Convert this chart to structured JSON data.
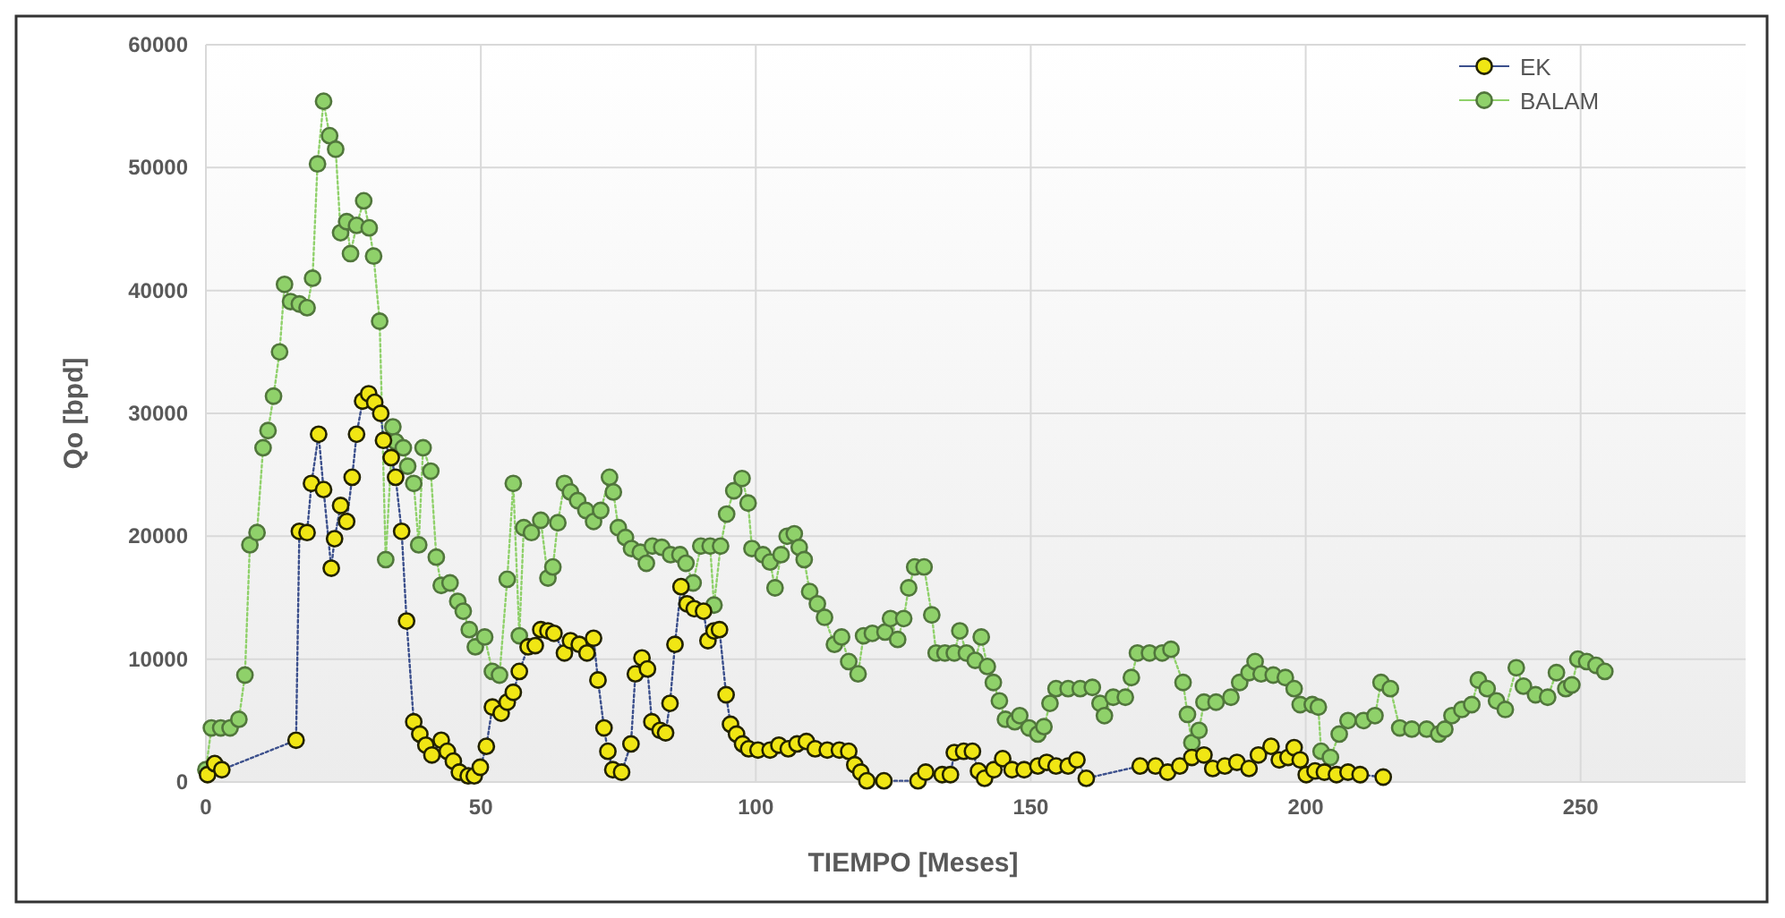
{
  "chart_data": {
    "type": "line",
    "xlabel": "TIEMPO [Meses]",
    "ylabel": "Qo [bpd]",
    "xlim": [
      0,
      280
    ],
    "xticks": [
      0,
      50,
      100,
      150,
      200,
      250
    ],
    "ylim": [
      0,
      60000
    ],
    "yticks": [
      0,
      10000,
      20000,
      30000,
      40000,
      50000,
      60000
    ],
    "grid": true,
    "legend": "top right",
    "marker": "circle",
    "line_style": "dotted",
    "series": [
      {
        "name": "EK",
        "color": "#f0e614",
        "x": [
          0.3,
          1.6,
          2.9,
          16.4,
          17,
          18.4,
          19.2,
          20.5,
          21.4,
          22.8,
          23.4,
          24.5,
          25.6,
          26.6,
          27.4,
          28.5,
          29.6,
          30.7,
          31.8,
          32.3,
          33.7,
          34.5,
          35.6,
          36.5,
          37.8,
          38.9,
          40,
          41.1,
          42.8,
          43.9,
          45,
          46.1,
          47.7,
          48.8,
          49.9,
          51,
          52.1,
          53.7,
          54.8,
          55.9,
          57,
          58.6,
          59.9,
          60.9,
          62.2,
          63.3,
          65.2,
          66.3,
          67.9,
          69.3,
          70.5,
          71.3,
          72.4,
          73.1,
          74,
          75.6,
          77.3,
          78.1,
          79.3,
          80.3,
          81.1,
          82.6,
          83.6,
          84.4,
          85.3,
          86.4,
          87.5,
          88.8,
          90.5,
          91.3,
          92.4,
          93.4,
          94.6,
          95.4,
          96.5,
          97.6,
          98.7,
          100.4,
          102.6,
          104.2,
          105.9,
          107.5,
          109.2,
          110.8,
          113,
          115.2,
          116.9,
          118,
          119.1,
          120.2,
          123.3,
          129.5,
          130.9,
          133.9,
          135.4,
          136.1,
          137.8,
          139.4,
          140.5,
          141.6,
          143.3,
          144.9,
          146.6,
          148.8,
          151.3,
          152.9,
          154.6,
          156.8,
          158.4,
          160.1,
          169.9,
          172.7,
          174.9,
          177.1,
          179.3,
          181.5,
          183.1,
          185.3,
          187.5,
          189.7,
          191.4,
          193.7,
          195.2,
          196.8,
          197.9,
          199,
          200.1,
          201.7,
          203.4,
          205.6,
          207.7,
          209.9,
          214.1
        ],
        "values": [
          600,
          1500,
          1000,
          3400,
          20400,
          20300,
          24300,
          28300,
          23800,
          17400,
          19800,
          22500,
          21200,
          24800,
          28300,
          31000,
          31600,
          30900,
          30000,
          27800,
          26400,
          24800,
          20400,
          13100,
          4900,
          3900,
          3000,
          2200,
          3400,
          2500,
          1700,
          800,
          500,
          500,
          1200,
          2900,
          6100,
          5600,
          6500,
          7300,
          9000,
          11000,
          11100,
          12400,
          12300,
          12100,
          10500,
          11500,
          11200,
          10500,
          11700,
          8300,
          4400,
          2500,
          1000,
          800,
          3100,
          8800,
          10100,
          9200,
          4900,
          4200,
          4000,
          6400,
          11200,
          15900,
          14500,
          14100,
          13900,
          11500,
          12300,
          12400,
          7100,
          4700,
          3900,
          3100,
          2700,
          2600,
          2600,
          3000,
          2700,
          3100,
          3300,
          2700,
          2600,
          2600,
          2500,
          1400,
          800,
          100,
          100,
          100,
          800,
          600,
          600,
          2400,
          2500,
          2500,
          900,
          300,
          1000,
          1900,
          1000,
          1000,
          1300,
          1600,
          1300,
          1300,
          1800,
          300,
          1300,
          1300,
          800,
          1300,
          2000,
          2200,
          1100,
          1300,
          1600,
          1100,
          2200,
          2900,
          1800,
          2000,
          2800,
          1800,
          600,
          900,
          800,
          600,
          800,
          600,
          400
        ]
      },
      {
        "name": "BALAM",
        "color": "#8fd16a",
        "x": [
          0,
          1,
          2.7,
          4.4,
          6,
          7.1,
          8,
          9.3,
          10.4,
          11.3,
          12.3,
          13.4,
          14.3,
          15.4,
          17,
          18.4,
          19.4,
          20.3,
          21.4,
          22.5,
          23.6,
          24.5,
          25.6,
          26.3,
          27.4,
          28.7,
          29.7,
          30.5,
          31.6,
          32.7,
          34,
          34.5,
          35.9,
          36.7,
          37.8,
          38.7,
          39.5,
          40.9,
          41.9,
          42.8,
          44.4,
          45.8,
          46.8,
          47.9,
          49,
          50.7,
          52.1,
          53.4,
          54.8,
          55.9,
          57,
          57.8,
          59.2,
          60.9,
          62.2,
          63.1,
          64,
          65.2,
          66.3,
          67.6,
          69.1,
          70.5,
          71.8,
          73.4,
          74.1,
          75,
          76.3,
          77.4,
          79,
          80.1,
          81.2,
          82.9,
          84.5,
          86.2,
          87.3,
          88.6,
          90,
          91.7,
          92.4,
          93.6,
          94.7,
          96,
          97.5,
          98.6,
          99.3,
          101.3,
          102.6,
          103.5,
          104.6,
          105.7,
          107,
          107.9,
          108.8,
          109.8,
          111.2,
          112.5,
          114.3,
          115.6,
          116.9,
          118.6,
          119.6,
          121.2,
          123.5,
          124.5,
          125.8,
          126.9,
          127.8,
          128.9,
          130.6,
          132,
          132.8,
          134.4,
          136.1,
          137.1,
          138.3,
          139.9,
          141,
          142.1,
          143.2,
          144.3,
          145.4,
          147.1,
          148,
          149.7,
          151.3,
          152.4,
          153.5,
          154.6,
          156.8,
          159,
          161.2,
          162.6,
          163.4,
          165,
          167.2,
          168.3,
          169.4,
          171.6,
          173.9,
          175.5,
          177.7,
          178.5,
          179.3,
          180.6,
          181.5,
          183.7,
          186.4,
          188,
          189.7,
          190.8,
          191.9,
          194.1,
          196.3,
          197.9,
          199,
          201.2,
          202.3,
          202.8,
          204.5,
          206.1,
          207.7,
          210.5,
          212.6,
          213.7,
          215.4,
          217.1,
          219.3,
          222,
          224.2,
          225.3,
          226.6,
          228.4,
          230.2,
          231.4,
          233,
          234.7,
          236.3,
          238.3,
          239.6,
          241.8,
          244,
          245.6,
          247.3,
          248.4,
          249.5,
          251.1,
          252.8,
          254.4
        ],
        "values": [
          1000,
          4400,
          4400,
          4400,
          5100,
          8700,
          19300,
          20300,
          27200,
          28600,
          31400,
          35000,
          40500,
          39100,
          38900,
          38600,
          41000,
          50300,
          55400,
          52600,
          51500,
          44700,
          45600,
          43000,
          45300,
          47300,
          45100,
          42800,
          37500,
          18100,
          28900,
          27700,
          27200,
          25700,
          24300,
          19300,
          27200,
          25300,
          18300,
          16000,
          16200,
          14700,
          13900,
          12400,
          11000,
          11800,
          9000,
          8700,
          16500,
          24300,
          11900,
          20700,
          20300,
          21300,
          16600,
          17500,
          21100,
          24300,
          23600,
          22900,
          22100,
          21200,
          22100,
          24800,
          23600,
          20700,
          19900,
          19000,
          18700,
          17800,
          19200,
          19100,
          18500,
          18500,
          17800,
          16200,
          19200,
          19200,
          14400,
          19200,
          21800,
          23700,
          24700,
          22700,
          19000,
          18500,
          17900,
          15800,
          18500,
          20000,
          20200,
          19100,
          18100,
          15500,
          14500,
          13400,
          11200,
          11800,
          9800,
          8800,
          11900,
          12100,
          12200,
          13300,
          11600,
          13300,
          15800,
          17500,
          17500,
          13600,
          10500,
          10500,
          10500,
          12300,
          10500,
          9900,
          11800,
          9400,
          8100,
          6600,
          5100,
          4900,
          5400,
          4400,
          3900,
          4500,
          6400,
          7600,
          7600,
          7600,
          7700,
          6400,
          5400,
          6900,
          6900,
          8500,
          10500,
          10500,
          10500,
          10800,
          8100,
          5500,
          3200,
          4200,
          6500,
          6500,
          6900,
          8100,
          8900,
          9800,
          8800,
          8700,
          8500,
          7600,
          6300,
          6300,
          6100,
          2500,
          2000,
          3900,
          5000,
          5000,
          5400,
          8100,
          7600,
          4400,
          4300,
          4300,
          3900,
          4300,
          5400,
          5900,
          6300,
          8300,
          7600,
          6600,
          5900,
          9300,
          7800,
          7100,
          6900,
          8900,
          7600,
          7900,
          10000,
          9800,
          9500,
          9000
        ]
      }
    ]
  }
}
